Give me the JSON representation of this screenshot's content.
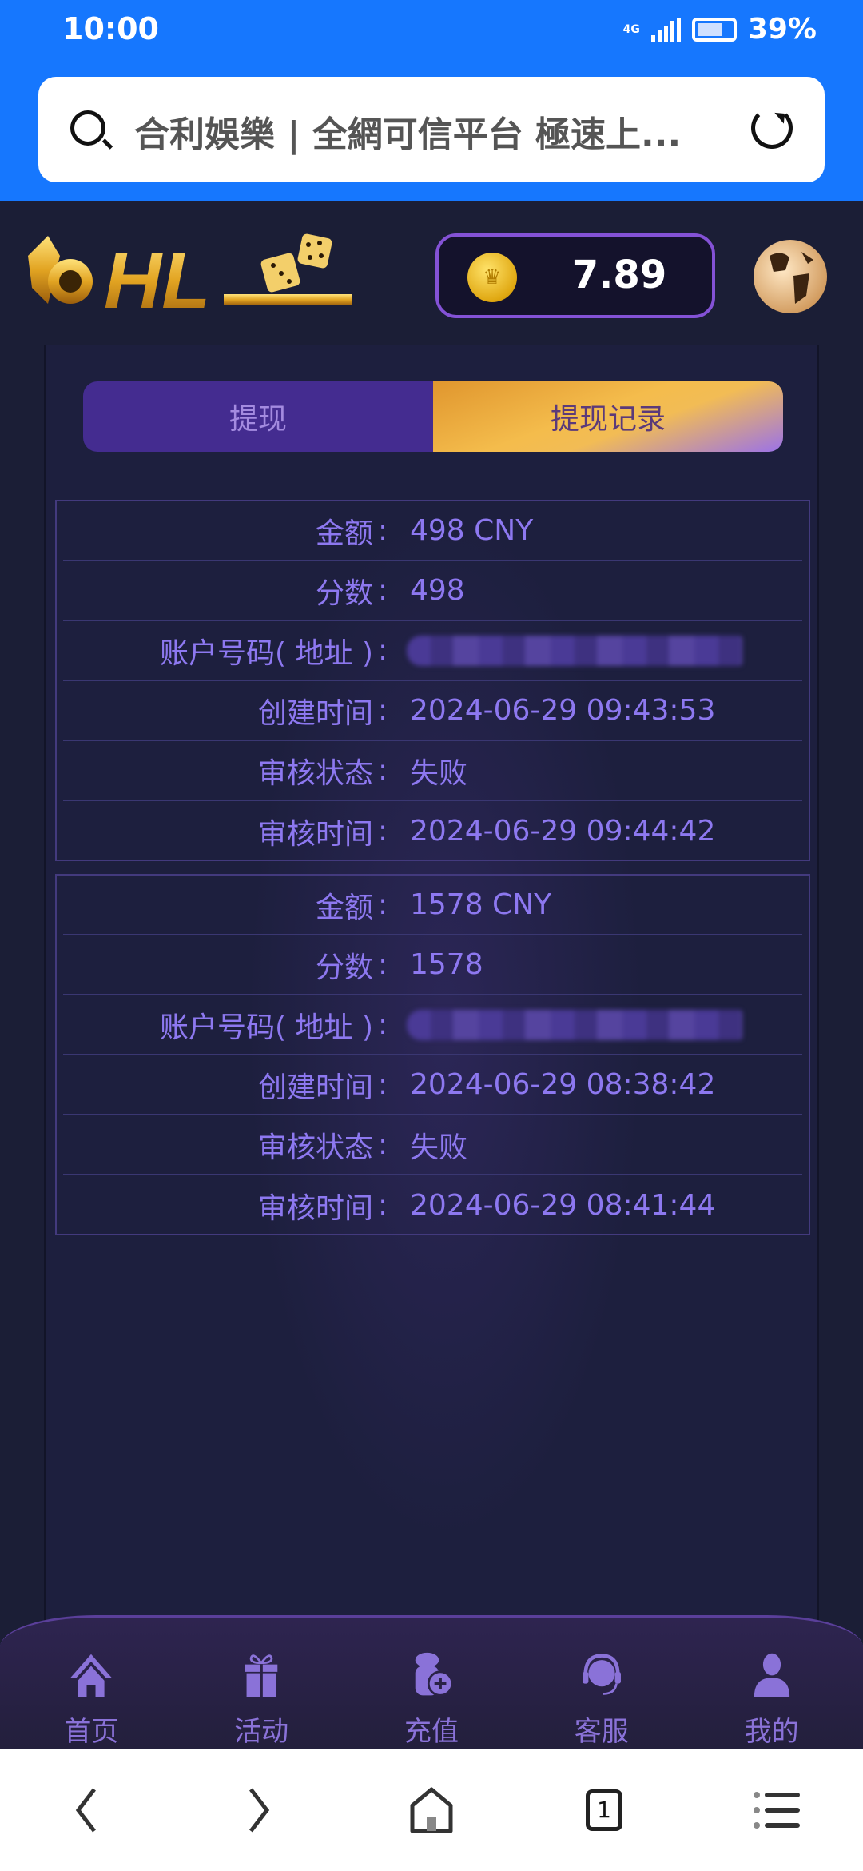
{
  "status_bar": {
    "time": "10:00",
    "network": "4G",
    "battery": "39%"
  },
  "browser": {
    "page_title": "合利娛樂 | 全網可信平台 極速上...",
    "tab_count": "1"
  },
  "header": {
    "logo_text": "HL",
    "balance": "7.89"
  },
  "tabs": [
    {
      "label": "提现",
      "active": false
    },
    {
      "label": "提现记录",
      "active": true
    }
  ],
  "records": [
    {
      "rows": [
        {
          "label": "金额",
          "value": "498 CNY"
        },
        {
          "label": "分数",
          "value": "498"
        },
        {
          "label": "账户号码( 地址 )",
          "value": null
        },
        {
          "label": "创建时间",
          "value": "2024-06-29 09:43:53"
        },
        {
          "label": "审核状态",
          "value": "失败"
        },
        {
          "label": "审核时间",
          "value": "2024-06-29 09:44:42"
        }
      ]
    },
    {
      "rows": [
        {
          "label": "金额",
          "value": "1578 CNY"
        },
        {
          "label": "分数",
          "value": "1578"
        },
        {
          "label": "账户号码( 地址 )",
          "value": null
        },
        {
          "label": "创建时间",
          "value": "2024-06-29 08:38:42"
        },
        {
          "label": "审核状态",
          "value": "失败"
        },
        {
          "label": "审核时间",
          "value": "2024-06-29 08:41:44"
        }
      ]
    }
  ],
  "colon": ":",
  "bottom_nav": [
    {
      "label": "首页",
      "icon": "home-icon"
    },
    {
      "label": "活动",
      "icon": "gift-icon"
    },
    {
      "label": "充值",
      "icon": "coins-plus-icon"
    },
    {
      "label": "客服",
      "icon": "headset-icon"
    },
    {
      "label": "我的",
      "icon": "user-icon"
    }
  ],
  "colors": {
    "browser_blue": "#1677fe",
    "bg": "#1b1e36",
    "accent_purple": "#8d78f0",
    "tab_gold": "#f4bc4c"
  }
}
